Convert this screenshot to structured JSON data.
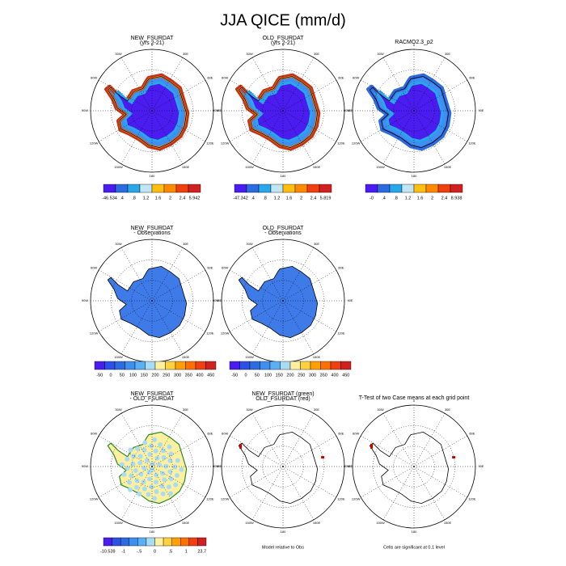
{
  "title": "JJA QICE (mm/d)",
  "longitude_labels": [
    "0",
    "30E",
    "60E",
    "90E",
    "120E",
    "150E",
    "180",
    "150W",
    "120W",
    "90W",
    "60W",
    "30W"
  ],
  "panels": [
    {
      "title": "NEW_FSURDAT",
      "subtitle": "(yrs 2-21)",
      "colorbar": {
        "colors": [
          "#4b1cf0",
          "#2d6be0",
          "#28a8ea",
          "#bfe6f5",
          "#ffbf10",
          "#ff8a00",
          "#f04010",
          "#d02020"
        ],
        "labels": [
          "-46.534",
          ".4",
          ".8",
          "1.2",
          "1.6",
          "2",
          "2.4",
          "5.942"
        ]
      }
    },
    {
      "title": "OLD_FSURDAT",
      "subtitle": "(yrs 2-21)",
      "colorbar": {
        "colors": [
          "#4b1cf0",
          "#2d6be0",
          "#28a8ea",
          "#bfe6f5",
          "#ffbf10",
          "#ff8a00",
          "#f04010",
          "#d02020"
        ],
        "labels": [
          "-47.342",
          ".4",
          ".8",
          "1.2",
          "1.6",
          "2",
          "2.4",
          "5.819"
        ]
      }
    },
    {
      "title": "RACMO2.3_p2",
      "colorbar": {
        "colors": [
          "#4b1cf0",
          "#2d6be0",
          "#28a8ea",
          "#bfe6f5",
          "#ffbf10",
          "#ff8a00",
          "#f04010",
          "#d02020"
        ],
        "labels": [
          "-0",
          ".4",
          ".8",
          "1.2",
          "1.6",
          "2",
          "2.4",
          "8.938"
        ]
      }
    },
    {
      "title": "NEW_FSURDAT",
      "subtitle": "- Observations",
      "colorbar": {
        "colors": [
          "#4b1cf0",
          "#2d50e8",
          "#2d6be0",
          "#3e8ff0",
          "#5ab0f5",
          "#a8dcf5",
          "#fff0a0",
          "#ffd040",
          "#ffa000",
          "#ff7000",
          "#f04010",
          "#d02020"
        ],
        "labels": [
          "-50",
          "0",
          "50",
          "100",
          "150",
          "200",
          "250",
          "300",
          "350",
          "400",
          "450"
        ]
      }
    },
    {
      "title": "OLD_FSURDAT",
      "subtitle": "- Observations",
      "colorbar": {
        "colors": [
          "#4b1cf0",
          "#2d50e8",
          "#2d6be0",
          "#3e8ff0",
          "#5ab0f5",
          "#a8dcf5",
          "#fff0a0",
          "#ffd040",
          "#ffa000",
          "#ff7000",
          "#f04010",
          "#d02020"
        ],
        "labels": [
          "-50",
          "0",
          "50",
          "100",
          "150",
          "200",
          "250",
          "300",
          "350",
          "400",
          "450"
        ]
      }
    },
    {
      "title": "NEW_FSURDAT",
      "subtitle": "- OLD_FSURDAT",
      "colorbar": {
        "colors": [
          "#4b1cf0",
          "#2d50e8",
          "#2d6be0",
          "#3e8ff0",
          "#5ab0f5",
          "#a8dcf5",
          "#fff0a0",
          "#ffd040",
          "#ffa000",
          "#ff7000",
          "#f04010",
          "#d02020"
        ],
        "labels": [
          "-10.539",
          "-1",
          "-.5",
          "0",
          ".5",
          "1",
          "23.7"
        ]
      }
    },
    {
      "title": "NEW_FSURDAT (green)",
      "subtitle": "OLD_FSURDAT (red)",
      "caption": "Model relative to Obs"
    },
    {
      "title": "T-Test of two Case means at each grid point",
      "caption": "Cells are significant at 0.1 level"
    }
  ]
}
